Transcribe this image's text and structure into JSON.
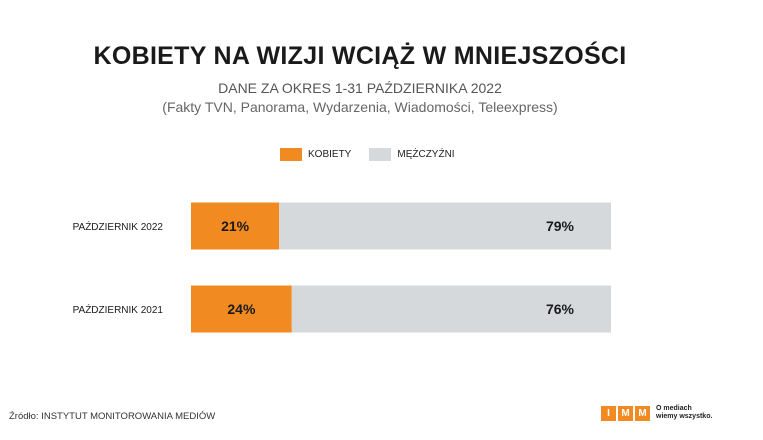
{
  "header": {
    "title": "KOBIETY NA WIZJI WCIĄŻ W MNIEJSZOŚCI",
    "subtitle": "DANE ZA OKRES 1-31 PAŹDZIERNIKA 2022",
    "note": "(Fakty TVN, Panorama, Wydarzenia, Wiadomości, Teleexpress)"
  },
  "legend": {
    "women": "KOBIETY",
    "men": "MĘŻCZYŹNI"
  },
  "colors": {
    "women": "#f28a22",
    "men": "#d5d9dc"
  },
  "chart_data": {
    "type": "bar",
    "orientation": "horizontal",
    "stacked": true,
    "categories": [
      "PAŹDZIERNIK 2022",
      "PAŹDZIERNIK 2021"
    ],
    "series": [
      {
        "name": "KOBIETY",
        "values": [
          21,
          24
        ],
        "labels": [
          "21%",
          "24%"
        ]
      },
      {
        "name": "MĘŻCZYŹNI",
        "values": [
          79,
          76
        ],
        "labels": [
          "79%",
          "76%"
        ]
      }
    ],
    "xlim": [
      0,
      100
    ],
    "grid": false,
    "legend_position": "top-center"
  },
  "footer": {
    "source": "Źródło: INSTYTUT MONITOROWANIA MEDIÓW",
    "logo_letters": [
      "I",
      "M",
      "M"
    ],
    "tagline_1": "O mediach",
    "tagline_2": "wiemy wszystko."
  }
}
